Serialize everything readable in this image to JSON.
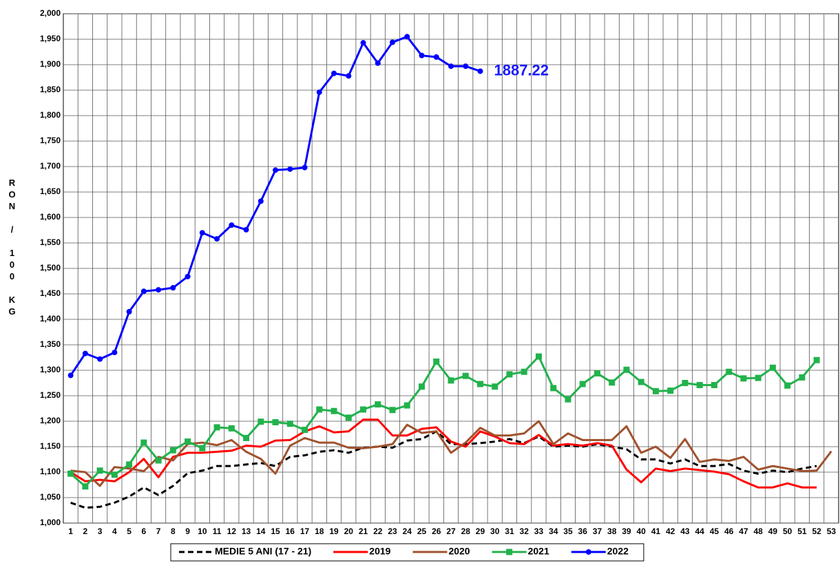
{
  "chart_data": {
    "type": "line",
    "ylabel": "RON / 100 KG",
    "annotation": {
      "text": "1887.22",
      "color": "#1a1aff"
    },
    "categories": [
      "1",
      "2",
      "3",
      "4",
      "5",
      "6",
      "7",
      "8",
      "9",
      "10",
      "11",
      "12",
      "13",
      "14",
      "15",
      "16",
      "17",
      "18",
      "19",
      "20",
      "21",
      "22",
      "23",
      "24",
      "25",
      "26",
      "27",
      "28",
      "29",
      "30",
      "31",
      "32",
      "33",
      "34",
      "35",
      "36",
      "37",
      "38",
      "39",
      "40",
      "41",
      "42",
      "43",
      "44",
      "45",
      "46",
      "47",
      "48",
      "49",
      "50",
      "51",
      "52",
      "53"
    ],
    "ylim": [
      1000,
      2000
    ],
    "yticks": [
      {
        "value": 1000,
        "label": "1,000"
      },
      {
        "value": 1050,
        "label": "1,050"
      },
      {
        "value": 1100,
        "label": "1,100"
      },
      {
        "value": 1150,
        "label": "1,150"
      },
      {
        "value": 1200,
        "label": "1,200"
      },
      {
        "value": 1250,
        "label": "1,250"
      },
      {
        "value": 1300,
        "label": "1,300"
      },
      {
        "value": 1350,
        "label": "1,350"
      },
      {
        "value": 1400,
        "label": "1,400"
      },
      {
        "value": 1450,
        "label": "1,450"
      },
      {
        "value": 1500,
        "label": "1,500"
      },
      {
        "value": 1550,
        "label": "1,550"
      },
      {
        "value": 1600,
        "label": "1,600"
      },
      {
        "value": 1650,
        "label": "1,650"
      },
      {
        "value": 1700,
        "label": "1,700"
      },
      {
        "value": 1750,
        "label": "1,750"
      },
      {
        "value": 1800,
        "label": "1,800"
      },
      {
        "value": 1850,
        "label": "1,850"
      },
      {
        "value": 1900,
        "label": "1,900"
      },
      {
        "value": 1950,
        "label": "1,950"
      },
      {
        "value": 2000,
        "label": "2,000"
      }
    ],
    "grid": true,
    "legend": "bottom",
    "series": [
      {
        "name": "MEDIE 5 ANI (17 - 21)",
        "color": "#000000",
        "dash": true,
        "marker": "none",
        "values": [
          1040,
          1030,
          1032,
          1040,
          1052,
          1070,
          1055,
          1073,
          1098,
          1103,
          1112,
          1112,
          1115,
          1118,
          1112,
          1130,
          1133,
          1140,
          1143,
          1138,
          1148,
          1150,
          1148,
          1162,
          1165,
          1180,
          1155,
          1155,
          1157,
          1160,
          1165,
          1157,
          1170,
          1150,
          1152,
          1150,
          1155,
          1150,
          1145,
          1125,
          1125,
          1117,
          1125,
          1112,
          1112,
          1116,
          1103,
          1097,
          1103,
          1100,
          1107,
          1112,
          null
        ]
      },
      {
        "name": "2019",
        "color": "#ff0000",
        "dash": false,
        "marker": "none",
        "values": [
          1100,
          1082,
          1085,
          1082,
          1100,
          1126,
          1090,
          1130,
          1138,
          1138,
          1140,
          1142,
          1152,
          1150,
          1162,
          1163,
          1180,
          1190,
          1178,
          1180,
          1203,
          1203,
          1172,
          1172,
          1185,
          1188,
          1160,
          1150,
          1180,
          1170,
          1157,
          1155,
          1173,
          1152,
          1155,
          1152,
          1157,
          1152,
          1105,
          1080,
          1107,
          1102,
          1107,
          1104,
          1101,
          1096,
          1082,
          1070,
          1070,
          1078,
          1070,
          1070,
          null
        ]
      },
      {
        "name": "2020",
        "color": "#a0522d",
        "dash": false,
        "marker": "none",
        "values": [
          1103,
          1100,
          1073,
          1110,
          1107,
          1102,
          1130,
          1123,
          1155,
          1158,
          1153,
          1163,
          1140,
          1126,
          1097,
          1152,
          1167,
          1158,
          1158,
          1148,
          1147,
          1150,
          1155,
          1193,
          1177,
          1180,
          1138,
          1158,
          1187,
          1172,
          1172,
          1176,
          1200,
          1155,
          1176,
          1163,
          1163,
          1163,
          1190,
          1138,
          1150,
          1128,
          1165,
          1120,
          1125,
          1122,
          1130,
          1105,
          1112,
          1107,
          1102,
          1103,
          1141
        ]
      },
      {
        "name": "2021",
        "color": "#22b24c",
        "dash": false,
        "marker": "square",
        "values": [
          1097,
          1072,
          1103,
          1095,
          1115,
          1158,
          1123,
          1143,
          1160,
          1147,
          1188,
          1186,
          1167,
          1199,
          1198,
          1195,
          1183,
          1223,
          1220,
          1207,
          1223,
          1233,
          1222,
          1231,
          1268,
          1317,
          1280,
          1289,
          1273,
          1268,
          1292,
          1297,
          1327,
          1265,
          1243,
          1273,
          1294,
          1276,
          1301,
          1277,
          1259,
          1260,
          1275,
          1271,
          1271,
          1297,
          1284,
          1285,
          1305,
          1270,
          1286,
          1320,
          null
        ]
      },
      {
        "name": "2022",
        "color": "#0000ff",
        "dash": false,
        "marker": "circle",
        "values": [
          1290,
          1333,
          1322,
          1335,
          1415,
          1455,
          1458,
          1462,
          1484,
          1570,
          1558,
          1585,
          1576,
          1632,
          1693,
          1695,
          1698,
          1846,
          1883,
          1878,
          1943,
          1903,
          1944,
          1955,
          1918,
          1915,
          1897,
          1897,
          1887.22,
          null,
          null,
          null,
          null,
          null,
          null,
          null,
          null,
          null,
          null,
          null,
          null,
          null,
          null,
          null,
          null,
          null,
          null,
          null,
          null,
          null,
          null,
          null,
          null
        ]
      }
    ]
  }
}
